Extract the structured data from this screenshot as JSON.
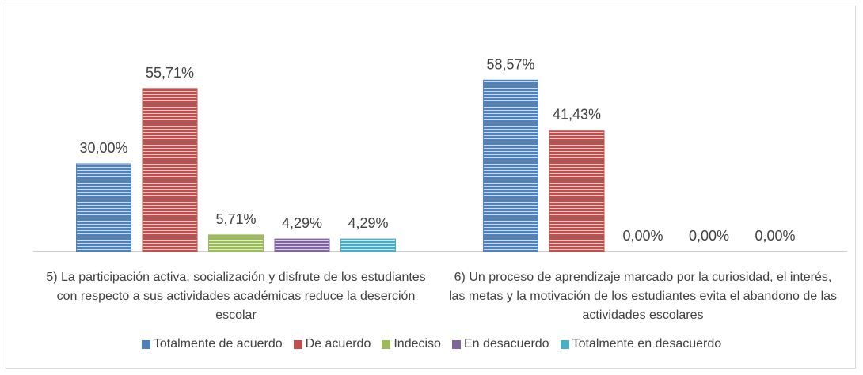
{
  "chart_data": {
    "type": "bar",
    "categories": [
      "5) La participación activa, socialización y disfrute de los estudiantes con respecto a sus actividades académicas reduce la deserción escolar",
      "6) Un proceso de aprendizaje marcado por la curiosidad, el interés, las metas y la motivación de los estudiantes evita el abandono de las actividades escolares"
    ],
    "series": [
      {
        "name": "Totalmente de acuerdo",
        "color": "#4f81bd",
        "values": [
          30.0,
          58.57
        ],
        "value_labels": [
          "30,00%",
          "58,57%"
        ]
      },
      {
        "name": "De acuerdo",
        "color": "#c0504d",
        "values": [
          55.71,
          41.43
        ],
        "value_labels": [
          "55,71%",
          "41,43%"
        ]
      },
      {
        "name": "Indeciso",
        "color": "#9bbb59",
        "values": [
          5.71,
          0.0
        ],
        "value_labels": [
          "5,71%",
          "0,00%"
        ]
      },
      {
        "name": "En desacuerdo",
        "color": "#8064a2",
        "values": [
          4.29,
          0.0
        ],
        "value_labels": [
          "4,29%",
          "0,00%"
        ]
      },
      {
        "name": "Totalmente en desacuerdo",
        "color": "#4bacc6",
        "values": [
          4.29,
          0.0
        ],
        "value_labels": [
          "4,29%",
          "0,00%"
        ]
      }
    ],
    "legend": "bottom"
  }
}
